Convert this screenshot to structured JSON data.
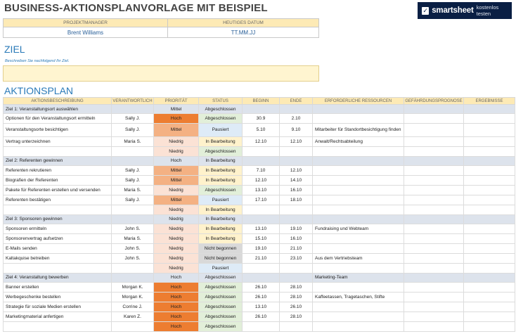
{
  "title": "BUSINESS-AKTIONSPLANVORLAGE MIT BEISPIEL",
  "brand": {
    "name": "smartsheet",
    "cta": "kostenlos testen",
    "check_glyph": "✓"
  },
  "info": {
    "manager_label": "PROJEKTMANAGER",
    "date_label": "HEUTIGES DATUM",
    "manager_value": "Brent Williams",
    "date_value": "TT.MM.JJ"
  },
  "goal": {
    "heading": "ZIEL",
    "hint": "Beschreiben Sie nachfolgend Ihr Ziel."
  },
  "plan": {
    "heading": "AKTIONSPLAN",
    "columns": [
      "AKTIONSBESCHREIBUNG",
      "VERANTWORTLICH",
      "PRIORITÄT",
      "STATUS",
      "BEGINN",
      "ENDE",
      "ERFORDERLICHE RESSOURCEN",
      "GEFÄHRDUNGSPROGNOSE",
      "ERGEBNISSE"
    ],
    "rows": [
      {
        "goal": true,
        "desc": "Ziel 1: Veranstaltungsort auswählen",
        "owner": "",
        "priority": "Mittel",
        "status": "Abgeschlossen",
        "start": "",
        "end": "",
        "resources": "",
        "risk": "",
        "result": ""
      },
      {
        "desc": "Optionen für den Veranstaltungsort ermitteln",
        "owner": "Sally J.",
        "priority": "Hoch",
        "status": "Abgeschlossen",
        "start": "30.9",
        "end": "2.10",
        "resources": "",
        "risk": "",
        "result": ""
      },
      {
        "tall": true,
        "desc": "Veranstaltungsorte besichtigen",
        "owner": "Sally J.",
        "priority": "Mittel",
        "status": "Pausiert",
        "start": "5.10",
        "end": "9.10",
        "resources": "Mitarbeiter für Standortbesichtigung finden",
        "risk": "",
        "result": ""
      },
      {
        "desc": "Vertrag unterzeichnen",
        "owner": "Maria S.",
        "priority": "Niedrig",
        "status": "In Bearbeitung",
        "start": "12.10",
        "end": "12.10",
        "resources": "Anwalt/Rechtsabteilung",
        "risk": "",
        "result": ""
      },
      {
        "desc": "",
        "owner": "",
        "priority": "Niedrig",
        "status": "Abgeschlossen",
        "start": "",
        "end": "",
        "resources": "",
        "risk": "",
        "result": ""
      },
      {
        "goal": true,
        "desc": "Ziel 2: Referenten gewinnen",
        "owner": "",
        "priority": "Hoch",
        "status": "In Bearbeitung",
        "start": "",
        "end": "",
        "resources": "",
        "risk": "",
        "result": ""
      },
      {
        "desc": "Referenten rekrutieren",
        "owner": "Sally J.",
        "priority": "Mittel",
        "status": "In Bearbeitung",
        "start": "7.10",
        "end": "12.10",
        "resources": "",
        "risk": "",
        "result": ""
      },
      {
        "desc": "Biografien der Referenten",
        "owner": "Sally J.",
        "priority": "Mittel",
        "status": "In Bearbeitung",
        "start": "12.10",
        "end": "14.10",
        "resources": "",
        "risk": "",
        "result": ""
      },
      {
        "desc": "Pakete für Referenten erstellen und versenden",
        "owner": "Maria S.",
        "priority": "Niedrig",
        "status": "Abgeschlossen",
        "start": "13.10",
        "end": "16.10",
        "resources": "",
        "risk": "",
        "result": ""
      },
      {
        "desc": "Referenten bestätigen",
        "owner": "Sally J.",
        "priority": "Mittel",
        "status": "Pausiert",
        "start": "17.10",
        "end": "18.10",
        "resources": "",
        "risk": "",
        "result": ""
      },
      {
        "desc": "",
        "owner": "",
        "priority": "Niedrig",
        "status": "In Bearbeitung",
        "start": "",
        "end": "",
        "resources": "",
        "risk": "",
        "result": ""
      },
      {
        "goal": true,
        "desc": "Ziel 3: Sponsoren gewinnen",
        "owner": "",
        "priority": "Niedrig",
        "status": "In Bearbeitung",
        "start": "",
        "end": "",
        "resources": "",
        "risk": "",
        "result": ""
      },
      {
        "desc": "Sponsoren ermitteln",
        "owner": "John S.",
        "priority": "Niedrig",
        "status": "In Bearbeitung",
        "start": "13.10",
        "end": "19.10",
        "resources": "Fundraising und Webteam",
        "risk": "",
        "result": ""
      },
      {
        "desc": "Sponsorenvertrag aufsetzen",
        "owner": "Maria S.",
        "priority": "Niedrig",
        "status": "In Bearbeitung",
        "start": "15.10",
        "end": "16.10",
        "resources": "",
        "risk": "",
        "result": ""
      },
      {
        "desc": "E-Mails senden",
        "owner": "John S.",
        "priority": "Niedrig",
        "status": "Nicht begonnen",
        "start": "19.10",
        "end": "21.10",
        "resources": "",
        "risk": "",
        "result": ""
      },
      {
        "desc": "Kaltakquise betreiben",
        "owner": "John S.",
        "priority": "Niedrig",
        "status": "Nicht begonnen",
        "start": "21.10",
        "end": "23.10",
        "resources": "Aus dem Vertriebsteam",
        "risk": "",
        "result": ""
      },
      {
        "desc": "",
        "owner": "",
        "priority": "Niedrig",
        "status": "Pausiert",
        "start": "",
        "end": "",
        "resources": "",
        "risk": "",
        "result": ""
      },
      {
        "goal": true,
        "desc": "Ziel 4: Veranstaltung bewerben",
        "owner": "",
        "priority": "Hoch",
        "status": "Abgeschlossen",
        "start": "",
        "end": "",
        "resources": "Marketing-Team",
        "risk": "",
        "result": ""
      },
      {
        "desc": "Banner erstellen",
        "owner": "Morgan K.",
        "priority": "Hoch",
        "status": "Abgeschlossen",
        "start": "26.10",
        "end": "28.10",
        "resources": "",
        "risk": "",
        "result": ""
      },
      {
        "desc": "Werbegeschenke bestellen",
        "owner": "Morgan K.",
        "priority": "Hoch",
        "status": "Abgeschlossen",
        "start": "26.10",
        "end": "28.10",
        "resources": "Kaffeetassen, Tragetaschen, Stifte",
        "risk": "",
        "result": ""
      },
      {
        "desc": "Strategie für soziale Medien erstellen",
        "owner": "Corrine J.",
        "priority": "Hoch",
        "status": "Abgeschlossen",
        "start": "13.10",
        "end": "26.10",
        "resources": "",
        "risk": "",
        "result": ""
      },
      {
        "desc": "Marketingmaterial anfertigen",
        "owner": "Karen Z.",
        "priority": "Hoch",
        "status": "Abgeschlossen",
        "start": "26.10",
        "end": "28.10",
        "resources": "",
        "risk": "",
        "result": ""
      },
      {
        "desc": "",
        "owner": "",
        "priority": "Hoch",
        "status": "Abgeschlossen",
        "start": "",
        "end": "",
        "resources": "",
        "risk": "",
        "result": ""
      }
    ]
  }
}
